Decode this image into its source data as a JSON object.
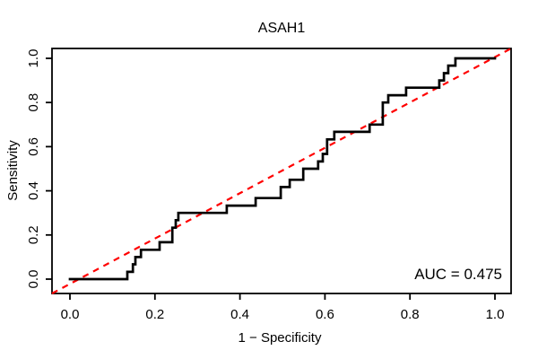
{
  "chart_data": {
    "type": "line",
    "subtype": "roc-step-curve",
    "title": "ASAH1",
    "xlabel": "1 − Specificity",
    "ylabel": "Sensitivity",
    "annotation": "AUC = 0.475",
    "auc": 0.475,
    "xlim": [
      0.0,
      1.0
    ],
    "ylim": [
      0.0,
      1.0
    ],
    "x_tick_values": [
      0.0,
      0.2,
      0.4,
      0.6,
      0.8,
      1.0
    ],
    "x_tick_labels": [
      "0.0",
      "0.2",
      "0.4",
      "0.6",
      "0.8",
      "1.0"
    ],
    "y_tick_values": [
      0.0,
      0.2,
      0.4,
      0.6,
      0.8,
      1.0
    ],
    "y_tick_labels": [
      "0.0",
      "0.2",
      "0.4",
      "0.6",
      "0.8",
      "1.0"
    ],
    "grid": "off",
    "curve_color": "#000000",
    "diagonal_color": "#ff0000",
    "diagonal_style": "dashed",
    "diagonal": {
      "from": [
        0.0,
        0.0
      ],
      "to": [
        1.0,
        1.0
      ]
    },
    "roc_points": [
      [
        0.0,
        0.0
      ],
      [
        0.135,
        0.0
      ],
      [
        0.135,
        0.033
      ],
      [
        0.148,
        0.033
      ],
      [
        0.148,
        0.067
      ],
      [
        0.154,
        0.067
      ],
      [
        0.154,
        0.1
      ],
      [
        0.167,
        0.1
      ],
      [
        0.167,
        0.133
      ],
      [
        0.211,
        0.133
      ],
      [
        0.211,
        0.167
      ],
      [
        0.241,
        0.167
      ],
      [
        0.241,
        0.233
      ],
      [
        0.249,
        0.233
      ],
      [
        0.249,
        0.267
      ],
      [
        0.255,
        0.267
      ],
      [
        0.255,
        0.3
      ],
      [
        0.369,
        0.3
      ],
      [
        0.369,
        0.333
      ],
      [
        0.437,
        0.333
      ],
      [
        0.437,
        0.367
      ],
      [
        0.496,
        0.367
      ],
      [
        0.496,
        0.417
      ],
      [
        0.517,
        0.417
      ],
      [
        0.517,
        0.45
      ],
      [
        0.549,
        0.45
      ],
      [
        0.549,
        0.5
      ],
      [
        0.584,
        0.5
      ],
      [
        0.584,
        0.533
      ],
      [
        0.595,
        0.533
      ],
      [
        0.595,
        0.567
      ],
      [
        0.605,
        0.567
      ],
      [
        0.605,
        0.633
      ],
      [
        0.622,
        0.633
      ],
      [
        0.622,
        0.667
      ],
      [
        0.705,
        0.667
      ],
      [
        0.705,
        0.7
      ],
      [
        0.736,
        0.7
      ],
      [
        0.736,
        0.8
      ],
      [
        0.749,
        0.8
      ],
      [
        0.749,
        0.833
      ],
      [
        0.791,
        0.833
      ],
      [
        0.791,
        0.867
      ],
      [
        0.869,
        0.867
      ],
      [
        0.869,
        0.9
      ],
      [
        0.88,
        0.9
      ],
      [
        0.88,
        0.933
      ],
      [
        0.89,
        0.933
      ],
      [
        0.89,
        0.967
      ],
      [
        0.907,
        0.967
      ],
      [
        0.907,
        1.0
      ],
      [
        1.0,
        1.0
      ]
    ]
  }
}
